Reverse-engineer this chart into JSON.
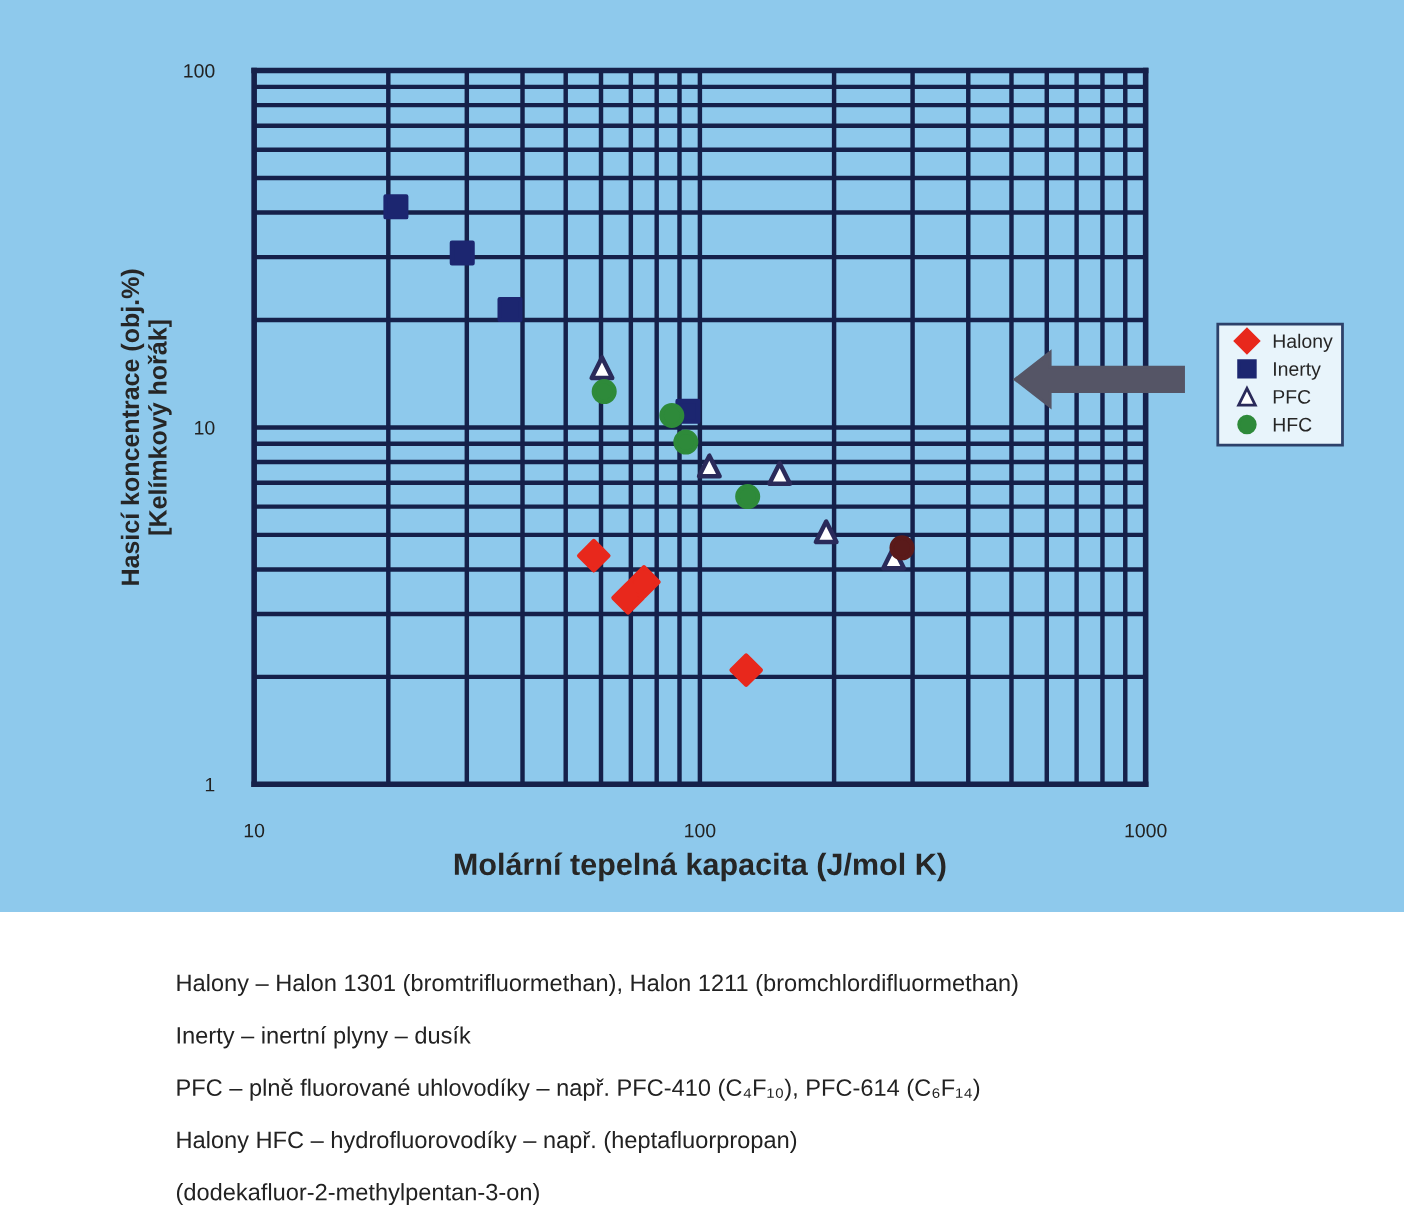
{
  "chart_data": {
    "type": "scatter",
    "xlabel": "Molární tepelná kapacita (J/mol K)",
    "ylabel": "Hasicí koncentrace (obj.%)\n[Kelímkový hořák]",
    "log": "xy",
    "grid": true,
    "legend": "right",
    "xlim": [
      10,
      1000
    ],
    "xticks": [
      10,
      100,
      1000
    ],
    "ylim": [
      1,
      100
    ],
    "yticks": [
      1,
      10,
      100
    ],
    "series": [
      {
        "name": "Halony",
        "color": "#e8281c",
        "marker": "diamond",
        "x": [
          57.8,
          69,
          74.9,
          127
        ],
        "values": [
          4.37,
          3.33,
          3.69,
          2.09
        ]
      },
      {
        "name": "Inerty",
        "color": "#1c2670",
        "marker": "square",
        "x": [
          20.8,
          29.3,
          37.5,
          94
        ],
        "values": [
          41.5,
          30.8,
          21.4,
          11.1
        ]
      },
      {
        "name": "PFC",
        "color": "#2a2a5a",
        "marker": "triangle",
        "x": [
          60.3,
          105,
          151,
          192,
          272
        ],
        "values": [
          14.7,
          7.8,
          7.43,
          5.1,
          4.31
        ]
      },
      {
        "name": "HFC",
        "color": "#2e8a3a",
        "marker": "circle",
        "x": [
          61,
          86.5,
          93,
          128
        ],
        "values": [
          12.6,
          10.8,
          9.1,
          6.4
        ]
      },
      {
        "color": "#5a1a1a",
        "marker": "circle",
        "x": [
          284
        ],
        "values": [
          4.6
        ]
      }
    ],
    "annotations": [
      "Halony – Halon 1301 (bromtrifluormethan), Halon 1211 (bromchlordifluormethan)",
      "Inerty – inertní plyny – dusík",
      "PFC – plně fluorované uhlovodíky – např. PFC-410 (C₄F₁₀), PFC-614 (C₆F₁₄)",
      "Halony HFC – hydrofluorovodíky – např. (heptafluorpropan)",
      "(dodekafluor-2-methylpentan-3-on)"
    ]
  }
}
